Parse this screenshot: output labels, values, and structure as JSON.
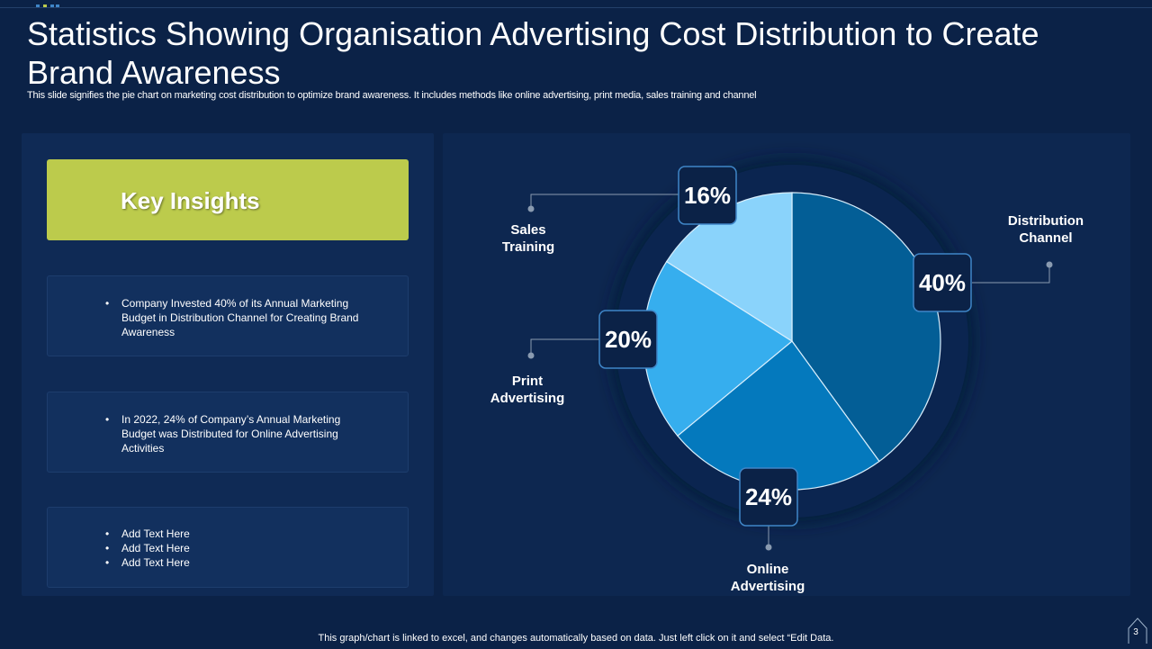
{
  "slide": {
    "title": "Statistics Showing Organisation Advertising Cost Distribution to Create Brand Awareness",
    "subtitle": "This slide signifies the pie chart on marketing cost distribution to optimize brand awareness. It includes methods like online advertising, print media, sales training and channel",
    "footer": "This graph/chart is linked to excel,  and changes automatically based on data. Just left click on it and select “Edit Data.",
    "page_number": "3"
  },
  "insights": {
    "heading": "Key Insights",
    "card1": [
      "Company Invested  40% of its Annual Marketing Budget in Distribution Channel for Creating Brand Awareness"
    ],
    "card2": [
      "In 2022, 24% of Company’s Annual Marketing Budget was Distributed for Online Advertising Activities"
    ],
    "card3": [
      "Add Text Here",
      "Add Text Here",
      "Add Text Here"
    ]
  },
  "chart_data": {
    "type": "pie",
    "slices": [
      {
        "name": "Distribution Channel",
        "name_lines": [
          "Distribution",
          "Channel"
        ],
        "value": 40,
        "label": "40%",
        "color": "#035e96"
      },
      {
        "name": "Online Advertising",
        "name_lines": [
          "Online",
          "Advertising"
        ],
        "value": 24,
        "label": "24%",
        "color": "#0479bd"
      },
      {
        "name": "Print Advertising",
        "name_lines": [
          "Print",
          "Advertising"
        ],
        "value": 20,
        "label": "20%",
        "color": "#36aeee"
      },
      {
        "name": "Sales Training",
        "name_lines": [
          "Sales",
          "Training"
        ],
        "value": 16,
        "label": "16%",
        "color": "#8ad3fb"
      }
    ]
  },
  "colors": {
    "background": "#0b2247",
    "accent": "#bccb4c",
    "label_box": "#0b2247",
    "label_border": "#3f86c8"
  }
}
